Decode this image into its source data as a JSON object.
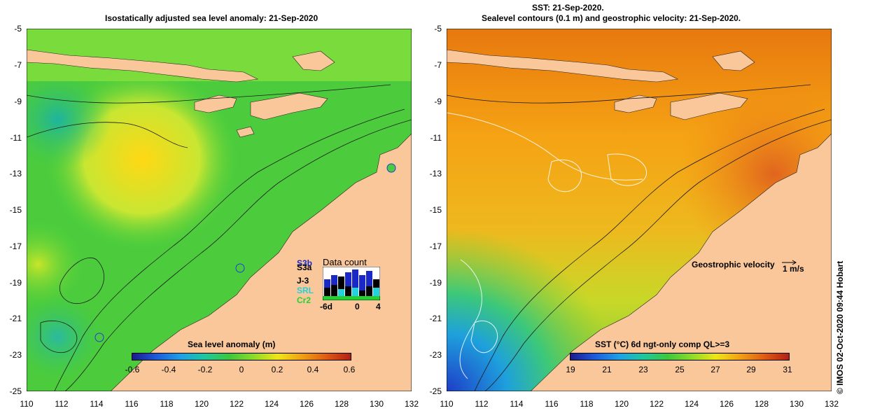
{
  "left_panel": {
    "title": "Isostatically adjusted sea level anomaly: 21-Sep-2020",
    "y_ticks": [
      "-5",
      "-7",
      "-9",
      "-11",
      "-13",
      "-15",
      "-17",
      "-19",
      "-21",
      "-23",
      "-25"
    ],
    "x_ticks": [
      "110",
      "112",
      "114",
      "116",
      "118",
      "120",
      "122",
      "124",
      "126",
      "128",
      "130",
      "132"
    ],
    "colorbar": {
      "label": "Sea level anomaly (m)",
      "ticks": [
        "-0.6",
        "-0.4",
        "-0.2",
        "0",
        "0.2",
        "0.4",
        "0.6"
      ]
    },
    "data_count": {
      "title": "Data count",
      "missions": [
        "S3b",
        "S3a",
        "J-3",
        "SRL",
        "Cr2"
      ],
      "x_labels": [
        "-6d",
        "0",
        "4"
      ]
    }
  },
  "right_panel": {
    "title_line1": "SST: 21-Sep-2020.",
    "title_line2": "Sealevel contours (0.1 m) and geostrophic velocity: 21-Sep-2020.",
    "y_ticks": [
      "-5",
      "-7",
      "-9",
      "-11",
      "-13",
      "-15",
      "-17",
      "-19",
      "-21",
      "-23",
      "-25"
    ],
    "x_ticks": [
      "110",
      "112",
      "114",
      "116",
      "118",
      "120",
      "122",
      "124",
      "126",
      "128",
      "130",
      "132"
    ],
    "colorbar": {
      "label": "SST (°C) 6d ngt-only comp QL>=3",
      "ticks": [
        "19",
        "21",
        "23",
        "25",
        "27",
        "29",
        "31"
      ]
    },
    "velocity_label": "Geostrophic velocity",
    "velocity_scale": "1 m/s"
  },
  "credit": "© IMOS 02-Oct-2020 09:44 Hobart",
  "colors": {
    "land": "#f9c79a",
    "ocean_green": "#3cc83c",
    "warm_orange": "#f28c14",
    "cool_blue": "#1e5adc"
  }
}
